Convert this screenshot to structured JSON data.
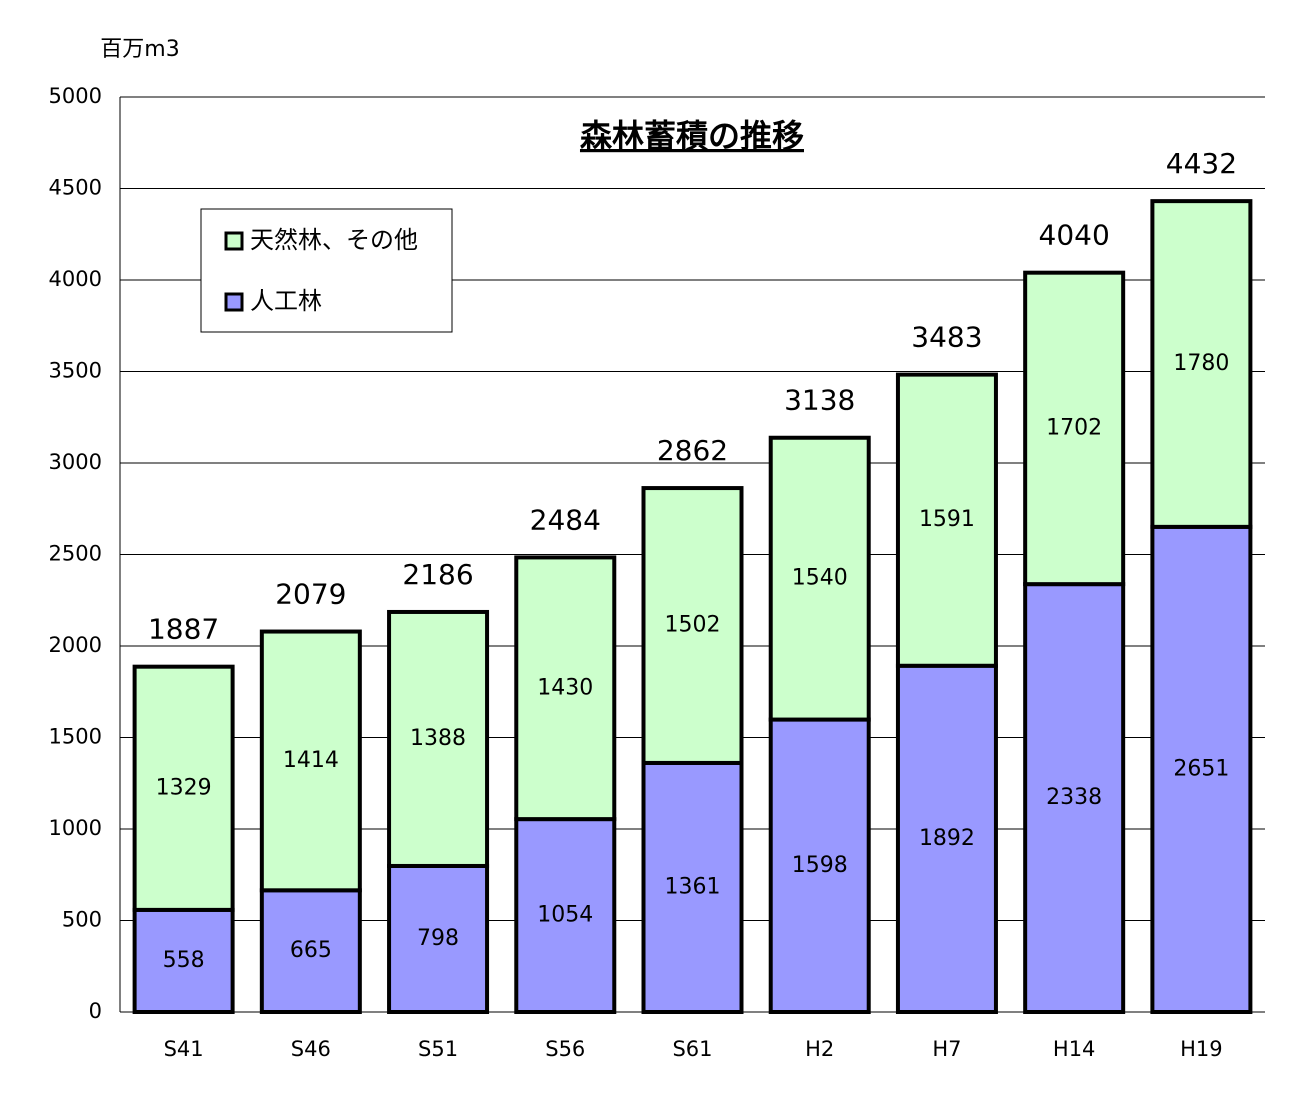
{
  "chart_data": {
    "type": "stacked_bar",
    "title": "森林蓄積の推移",
    "y_unit": "百万m3",
    "categories": [
      "S41",
      "S46",
      "S51",
      "S56",
      "S61",
      "H2",
      "H7",
      "H14",
      "H19"
    ],
    "series": [
      {
        "name": "天然林、その他",
        "color": "#ccffcc",
        "values": [
          1329,
          1414,
          1388,
          1430,
          1502,
          1540,
          1591,
          1702,
          1780
        ]
      },
      {
        "name": "人工林",
        "color": "#9999ff",
        "values": [
          558,
          665,
          798,
          1054,
          1361,
          1598,
          1892,
          2338,
          2651
        ]
      }
    ],
    "totals": [
      1887,
      2079,
      2186,
      2484,
      2862,
      3138,
      3483,
      4040,
      4432
    ],
    "ylim": [
      0,
      5000
    ],
    "yticks": [
      0,
      500,
      1000,
      1500,
      2000,
      2500,
      3000,
      3500,
      4000,
      4500,
      5000
    ],
    "grid": true
  }
}
